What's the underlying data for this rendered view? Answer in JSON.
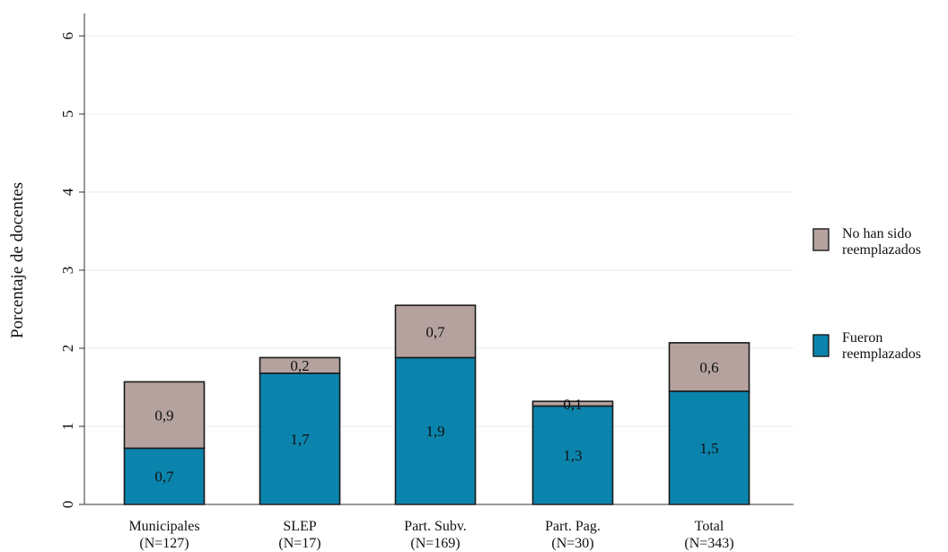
{
  "chart_data": {
    "type": "bar",
    "stacked": true,
    "ylabel": "Porcentaje de docentes",
    "xlabel": "",
    "ylim": [
      0,
      6.2
    ],
    "yticks": [
      0,
      1,
      2,
      3,
      4,
      5,
      6
    ],
    "grid": true,
    "legend_position": "right",
    "categories": [
      {
        "label": "Municipales",
        "sublabel": "(N=127)"
      },
      {
        "label": "SLEP",
        "sublabel": "(N=17)"
      },
      {
        "label": "Part. Subv.",
        "sublabel": "(N=169)"
      },
      {
        "label": "Part. Pag.",
        "sublabel": "(N=30)"
      },
      {
        "label": "Total",
        "sublabel": "(N=343)"
      }
    ],
    "series": [
      {
        "name": "Fueron reemplazados",
        "legend_lines": [
          "Fueron",
          "reemplazados"
        ],
        "color": "#0b84ad",
        "values": [
          0.72,
          1.68,
          1.88,
          1.26,
          1.45
        ],
        "labels": [
          "0,7",
          "1,7",
          "1,9",
          "1,3",
          "1,5"
        ]
      },
      {
        "name": "No han sido reemplazados",
        "legend_lines": [
          "No han sido",
          "reemplazados"
        ],
        "color": "#b5a29f",
        "values": [
          0.85,
          0.2,
          0.67,
          0.06,
          0.62
        ],
        "labels": [
          "0,9",
          "0,2",
          "0,7",
          "0,1",
          "0,6"
        ]
      }
    ]
  }
}
